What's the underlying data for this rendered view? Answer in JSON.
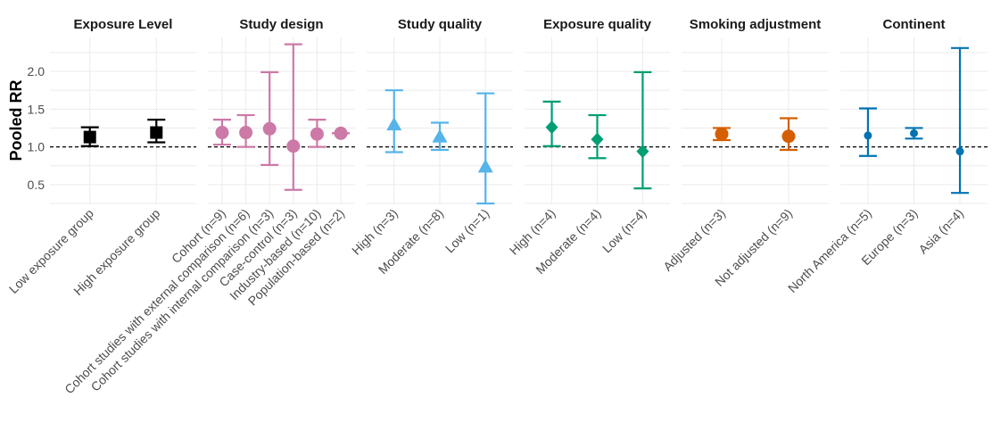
{
  "chart_data": {
    "type": "scatter",
    "subtype": "faceted forest plot (point estimate with confidence interval)",
    "ylabel": "Pooled RR",
    "ylim": [
      0.25,
      2.45
    ],
    "yticks": [
      "0.5",
      "1.0",
      "1.5",
      "2.0"
    ],
    "reference_line": {
      "y": 1.0,
      "style": "dashed"
    },
    "grid": true,
    "facets": [
      {
        "title": "Exposure Level",
        "color": "#000000",
        "marker": "square",
        "categories": [
          "Low exposure group",
          "High exposure group"
        ],
        "estimate": [
          1.13,
          1.19
        ],
        "lower": [
          1.01,
          1.06
        ],
        "upper": [
          1.26,
          1.36
        ]
      },
      {
        "title": "Study design",
        "color": "#CC79A7",
        "marker": "circle",
        "categories": [
          "Cohort (n=9)",
          "Cohort studies with external comparison (n=6)",
          "Cohort studies with internal comparison (n=3)",
          "Case-control (n=3)",
          "Industry-based (n=10)",
          "Population-based (n=2)"
        ],
        "estimate": [
          1.19,
          1.19,
          1.24,
          1.01,
          1.17,
          1.18
        ],
        "lower": [
          1.03,
          1.0,
          0.76,
          0.43,
          1.0,
          1.18
        ],
        "upper": [
          1.36,
          1.42,
          1.99,
          2.36,
          1.36,
          1.18
        ]
      },
      {
        "title": "Study quality",
        "color": "#56B4E9",
        "marker": "triangle",
        "categories": [
          "High (n=3)",
          "Moderate (n=8)",
          "Low (n=1)"
        ],
        "estimate": [
          1.29,
          1.13,
          0.73
        ],
        "lower": [
          0.93,
          0.96,
          0.25
        ],
        "upper": [
          1.75,
          1.32,
          1.71
        ]
      },
      {
        "title": "Exposure quality",
        "color": "#009E73",
        "marker": "diamond",
        "categories": [
          "High (n=4)",
          "Moderate (n=4)",
          "Low (n=4)"
        ],
        "estimate": [
          1.26,
          1.1,
          0.94
        ],
        "lower": [
          1.01,
          0.85,
          0.45
        ],
        "upper": [
          1.6,
          1.42,
          1.99
        ]
      },
      {
        "title": "Smoking adjustment",
        "color": "#D55E00",
        "marker": "circle",
        "categories": [
          "Adjusted (n=3)",
          "Not adjusted (n=9)"
        ],
        "estimate": [
          1.17,
          1.14
        ],
        "lower": [
          1.09,
          0.96
        ],
        "upper": [
          1.25,
          1.38
        ]
      },
      {
        "title": "Continent",
        "color": "#0072B2",
        "marker": "small-circle",
        "categories": [
          "North America (n=5)",
          "Europe (n=3)",
          "Asia (n=4)"
        ],
        "estimate": [
          1.15,
          1.18,
          0.94
        ],
        "lower": [
          0.88,
          1.11,
          0.39
        ],
        "upper": [
          1.51,
          1.25,
          2.31
        ]
      }
    ]
  }
}
